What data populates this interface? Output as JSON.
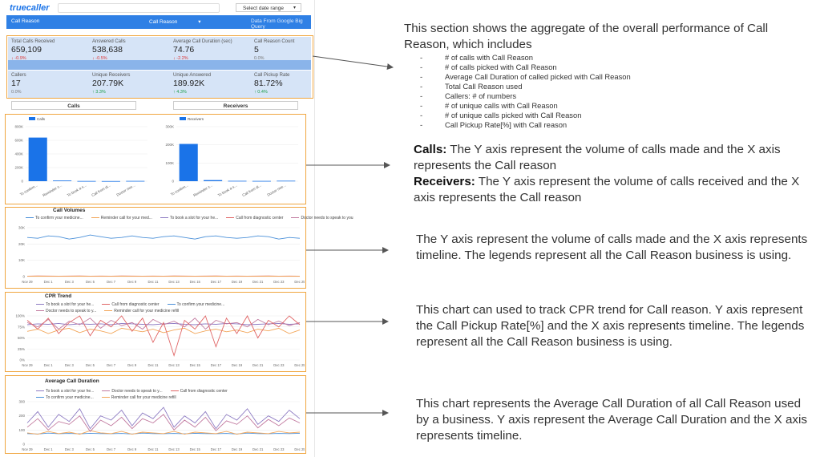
{
  "header": {
    "logo_text": "truecaller",
    "date_range_placeholder": "Select date range"
  },
  "banner": {
    "left_label": "Call Reason",
    "dropdown_label": "Call Reason",
    "source_note": "Data From Google Big Query"
  },
  "kpis_row1": [
    {
      "label": "Total Calls Received",
      "value": "659,109",
      "change": "↓ -0.9%",
      "trend": "down"
    },
    {
      "label": "Answered Calls",
      "value": "538,638",
      "change": "↓ -0.5%",
      "trend": "down"
    },
    {
      "label": "Average Call Duration (sec)",
      "value": "74.76",
      "change": "↓ -2.2%",
      "trend": "down"
    },
    {
      "label": "Call Reason Count",
      "value": "5",
      "change": "0.0%",
      "trend": "flat"
    }
  ],
  "kpis_row2": [
    {
      "label": "Callers",
      "value": "17",
      "change": "0.0%",
      "trend": "flat"
    },
    {
      "label": "Unique Receivers",
      "value": "207.79K",
      "change": "↑ 3.3%",
      "trend": "up"
    },
    {
      "label": "Unique Answered",
      "value": "189.92K",
      "change": "↑ 4.3%",
      "trend": "up"
    },
    {
      "label": "Call Pickup Rate",
      "value": "81.72%",
      "change": "↑ 0.4%",
      "trend": "up"
    }
  ],
  "tabs": {
    "calls": "Calls",
    "receivers": "Receivers"
  },
  "charts": {
    "calls_bar": {
      "type": "bar",
      "legend": "Calls",
      "categories": [
        "To confirm...",
        "Reminder c...",
        "To book a s...",
        "Call from di...",
        "Doctor nee..."
      ],
      "values": [
        640000,
        10000,
        3000,
        2000,
        4000
      ],
      "ylim": [
        0,
        800000
      ],
      "yticks": [
        "0",
        "200K",
        "400K",
        "600K",
        "800K"
      ],
      "color": "#1a73e8"
    },
    "receivers_bar": {
      "type": "bar",
      "legend": "Receivers",
      "categories": [
        "To confirm...",
        "Reminder c...",
        "To book a s...",
        "Call from di...",
        "Doctor nee..."
      ],
      "values": [
        205000,
        6000,
        2000,
        1500,
        2500
      ],
      "ylim": [
        0,
        300000
      ],
      "yticks": [
        "0",
        "100K",
        "200K",
        "300K"
      ],
      "color": "#1a73e8"
    },
    "call_volumes": {
      "type": "line",
      "title": "Call Volumes",
      "legend": [
        {
          "name": "To confirm your medicine...",
          "color": "#4a90d9"
        },
        {
          "name": "Reminder call for your med...",
          "color": "#f2a65a"
        },
        {
          "name": "To book a slot for your he...",
          "color": "#8e7cc3"
        },
        {
          "name": "Call from diagnostic center",
          "color": "#e06666"
        },
        {
          "name": "Doctor needs to speak to you",
          "color": "#c27ba0"
        }
      ],
      "yticks": [
        "0",
        "10K",
        "20K",
        "30K"
      ],
      "ylim": [
        0,
        30000
      ],
      "x": [
        "Nov 29",
        "Dec 1",
        "Dec 3",
        "Dec 5",
        "Dec 7",
        "Dec 9",
        "Dec 11",
        "Dec 13",
        "Dec 15",
        "Dec 17",
        "Dec 19",
        "Dec 21",
        "Dec 23",
        "Dec 25"
      ],
      "series_main": [
        24000,
        23500,
        25000,
        24500,
        23000,
        24000,
        25500,
        24500,
        23500,
        24000,
        25000,
        24000,
        23500,
        24500,
        25000,
        24000,
        23000,
        24500,
        25000,
        24000,
        23500,
        24000,
        25000,
        24500,
        23000,
        24000,
        23500
      ],
      "series_low": [
        300,
        400,
        350,
        300,
        350,
        400,
        300,
        350,
        300,
        400,
        350,
        300,
        350,
        300,
        400,
        350,
        300,
        350,
        400,
        300,
        350,
        300,
        350,
        400,
        300,
        350,
        300
      ]
    },
    "cpr_trend": {
      "type": "line",
      "title": "CPR Trend",
      "legend": [
        {
          "name": "To book a slot for your he...",
          "color": "#8e7cc3"
        },
        {
          "name": "Call from diagnostic center",
          "color": "#e06666"
        },
        {
          "name": "To confirm your medicine...",
          "color": "#4a90d9"
        },
        {
          "name": "Doctor needs to speak to y...",
          "color": "#c27ba0"
        },
        {
          "name": "Reminder call for your medicine refill",
          "color": "#f2a65a"
        }
      ],
      "yticks": [
        "0%",
        "25%",
        "50%",
        "75%",
        "100%"
      ],
      "ylim": [
        0,
        100
      ],
      "x": [
        "Nov 29",
        "Dec 1",
        "Dec 3",
        "Dec 5",
        "Dec 7",
        "Dec 9",
        "Dec 11",
        "Dec 13",
        "Dec 15",
        "Dec 17",
        "Dec 19",
        "Dec 21",
        "Dec 23",
        "Dec 25"
      ],
      "s1": [
        80,
        82,
        81,
        83,
        80,
        82,
        81,
        82,
        80,
        83,
        82,
        81,
        80,
        82,
        83,
        81,
        80,
        82,
        81,
        83,
        82,
        80,
        81,
        82,
        83,
        81,
        82
      ],
      "s2": [
        90,
        70,
        95,
        60,
        85,
        100,
        55,
        90,
        75,
        100,
        65,
        95,
        40,
        85,
        10,
        90,
        70,
        100,
        30,
        95,
        60,
        100,
        50,
        90,
        75,
        100,
        80
      ],
      "s3": [
        85,
        75,
        92,
        70,
        88,
        80,
        95,
        72,
        90,
        78,
        85,
        70,
        92,
        80,
        88,
        75,
        95,
        70,
        90,
        82,
        85,
        75,
        92,
        80,
        88,
        78,
        85
      ],
      "s4": [
        65,
        70,
        60,
        68,
        72,
        62,
        70,
        66,
        60,
        72,
        68,
        64,
        70,
        62,
        68,
        72,
        60,
        66,
        70,
        64,
        68,
        62,
        70,
        66,
        72,
        60,
        68
      ]
    },
    "avg_duration": {
      "type": "line",
      "title": "Average Call Duration",
      "legend": [
        {
          "name": "To book a slot for your he...",
          "color": "#8e7cc3"
        },
        {
          "name": "Doctor needs to speak to y...",
          "color": "#c27ba0"
        },
        {
          "name": "Call from diagnostic center",
          "color": "#e06666"
        },
        {
          "name": "To confirm your medicine...",
          "color": "#4a90d9"
        },
        {
          "name": "Reminder call for your medicine refill",
          "color": "#f2a65a"
        }
      ],
      "yticks": [
        "0",
        "100",
        "200",
        "300"
      ],
      "ylim": [
        0,
        300
      ],
      "x": [
        "Nov 29",
        "Dec 1",
        "Dec 3",
        "Dec 5",
        "Dec 7",
        "Dec 9",
        "Dec 11",
        "Dec 13",
        "Dec 15",
        "Dec 17",
        "Dec 19",
        "Dec 21",
        "Dec 23",
        "Dec 25"
      ],
      "s1": [
        150,
        230,
        120,
        210,
        160,
        250,
        110,
        200,
        170,
        240,
        130,
        220,
        180,
        260,
        120,
        200,
        150,
        230,
        110,
        210,
        170,
        250,
        140,
        200,
        160,
        240,
        180
      ],
      "s2": [
        120,
        180,
        100,
        160,
        140,
        200,
        90,
        170,
        130,
        190,
        110,
        180,
        150,
        210,
        100,
        170,
        120,
        190,
        95,
        165,
        140,
        200,
        115,
        175,
        130,
        185,
        150
      ],
      "s3": [
        80,
        70,
        90,
        75,
        85,
        70,
        95,
        80,
        75,
        90,
        70,
        85,
        80,
        75,
        90,
        70,
        85,
        80,
        75,
        90,
        70,
        85,
        80,
        75,
        90,
        80,
        85
      ],
      "s4": [
        75,
        72,
        78,
        74,
        76,
        73,
        77,
        75,
        74,
        76,
        72,
        78,
        75,
        74,
        76,
        73,
        77,
        75,
        74,
        76,
        72,
        78,
        75,
        74,
        76,
        75,
        77
      ]
    }
  },
  "annotations": {
    "section1_intro": "This section shows the aggregate of the overall performance of Call Reason, which includes",
    "section1_bullets": [
      "# of calls with Call Reason",
      "# of calls picked with Call Reason",
      "Average Call Duration of called picked with Call Reason",
      "Total Call Reason used",
      "Callers: # of numbers",
      "# of  unique calls with Call Reason",
      "# of unique calls picked with Call Reason",
      "Call Pickup Rate[%] with Call reason"
    ],
    "calls_label": "Calls:",
    "calls_text": " The Y axis represent the volume of calls made and the X axis represents the Call reason",
    "receivers_label": "Receivers:",
    "receivers_text": " The Y axis represent the volume of calls received and the X axis represents the Call reason",
    "call_volumes_text": "The Y axis represent the volume of calls made and the X axis represents timeline. The legends represent all the Call Reason business is using.",
    "cpr_text": "This chart can used to track CPR trend for Call reason. Y axis represent the Call Pickup Rate[%] and the X axis represents timeline. The legends represent all the Call Reason business is using.",
    "avg_text": "This chart represents the Average Call Duration of all Call Reason used by a business.  Y axis represent the Average Call Duration and the X axis represents timeline."
  }
}
